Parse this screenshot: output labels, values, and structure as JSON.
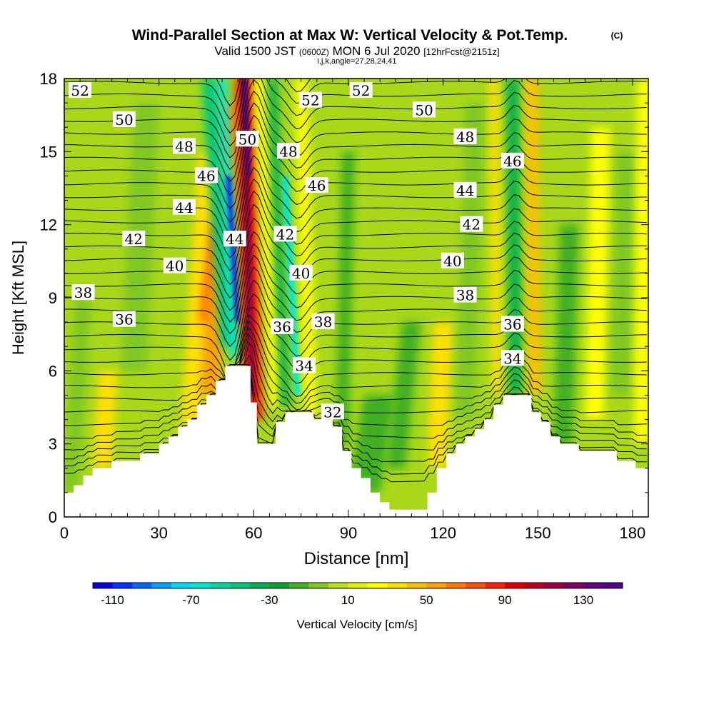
{
  "header": {
    "title": "Wind-Parallel Section at Max W: Vertical Velocity & Pot.Temp.",
    "title_mark": "(C)",
    "valid_prefix": "Valid 1500 JST",
    "valid_utc": "(0600Z)",
    "valid_date": "MON 6 Jul 2020",
    "fcst": "[12hrFcst@2151z]",
    "indices": "i,j,k,angle=27,28,24,41"
  },
  "chart_data": {
    "type": "heatmap",
    "title": "Wind-Parallel Section at Max W: Vertical Velocity & Pot.Temp.",
    "xlabel": "Distance [nm]",
    "ylabel": "Height [Kft MSL]",
    "xlim": [
      0,
      185
    ],
    "ylim": [
      0,
      18
    ],
    "x_ticks": [
      "0",
      "30",
      "60",
      "90",
      "120",
      "150",
      "180"
    ],
    "y_ticks": [
      "0",
      "3",
      "6",
      "9",
      "12",
      "15",
      "18"
    ],
    "colorbar": {
      "label": "Vertical Velocity [cm/s]",
      "tick_labels": [
        "-110",
        "-70",
        "-30",
        "10",
        "50",
        "90",
        "130"
      ],
      "range": [
        -120,
        150
      ],
      "step": 10,
      "colors": [
        "#0000e0",
        "#0030ff",
        "#0068ff",
        "#00a0ff",
        "#00d8ff",
        "#00e8d0",
        "#00d8a0",
        "#00c878",
        "#00b050",
        "#10a030",
        "#40b020",
        "#80c820",
        "#b8e018",
        "#e0f000",
        "#ffff00",
        "#ffe000",
        "#ffc000",
        "#ffa000",
        "#ff7800",
        "#ff5000",
        "#ff2000",
        "#e00000",
        "#c00020",
        "#a00040",
        "#800060",
        "#600080",
        "#500090"
      ]
    },
    "theta_contour_labels": [
      {
        "text": "52",
        "x": 5,
        "y": 17.5
      },
      {
        "text": "50",
        "x": 19,
        "y": 16.3
      },
      {
        "text": "48",
        "x": 38,
        "y": 15.2
      },
      {
        "text": "46",
        "x": 45,
        "y": 14.0
      },
      {
        "text": "44",
        "x": 38,
        "y": 12.7
      },
      {
        "text": "42",
        "x": 22,
        "y": 11.4
      },
      {
        "text": "40",
        "x": 35,
        "y": 10.3
      },
      {
        "text": "38",
        "x": 6,
        "y": 9.2
      },
      {
        "text": "36",
        "x": 19,
        "y": 8.1
      },
      {
        "text": "50",
        "x": 58,
        "y": 15.5
      },
      {
        "text": "44",
        "x": 54,
        "y": 11.4
      },
      {
        "text": "52",
        "x": 78,
        "y": 17.1
      },
      {
        "text": "48",
        "x": 71,
        "y": 15.0
      },
      {
        "text": "46",
        "x": 80,
        "y": 13.6
      },
      {
        "text": "42",
        "x": 70,
        "y": 11.6
      },
      {
        "text": "40",
        "x": 75,
        "y": 10.0
      },
      {
        "text": "38",
        "x": 82,
        "y": 8.0
      },
      {
        "text": "36",
        "x": 69,
        "y": 7.8
      },
      {
        "text": "34",
        "x": 76,
        "y": 6.2
      },
      {
        "text": "32",
        "x": 85,
        "y": 4.3
      },
      {
        "text": "52",
        "x": 94,
        "y": 17.5
      },
      {
        "text": "50",
        "x": 114,
        "y": 16.7
      },
      {
        "text": "48",
        "x": 127,
        "y": 15.6
      },
      {
        "text": "46",
        "x": 142,
        "y": 14.6
      },
      {
        "text": "44",
        "x": 127,
        "y": 13.4
      },
      {
        "text": "42",
        "x": 129,
        "y": 12.0
      },
      {
        "text": "40",
        "x": 123,
        "y": 10.5
      },
      {
        "text": "38",
        "x": 127,
        "y": 9.1
      },
      {
        "text": "36",
        "x": 142,
        "y": 7.9
      },
      {
        "text": "34",
        "x": 142,
        "y": 6.5
      }
    ],
    "terrain_profile": {
      "x": [
        0,
        3,
        6,
        9,
        12,
        15,
        18,
        21,
        24,
        27,
        30,
        33,
        36,
        39,
        42,
        45,
        48,
        51,
        54,
        57,
        59,
        61,
        64,
        67,
        70,
        73,
        76,
        79,
        82,
        85,
        88,
        91,
        94,
        97,
        100,
        103,
        106,
        109,
        112,
        115,
        118,
        121,
        124,
        127,
        130,
        133,
        136,
        139,
        142,
        145,
        148,
        151,
        154,
        157,
        160,
        163,
        166,
        169,
        172,
        175,
        178,
        181,
        185
      ],
      "height": [
        1.0,
        1.3,
        1.7,
        2.0,
        2.0,
        2.3,
        2.3,
        2.3,
        2.6,
        2.6,
        3.0,
        3.3,
        3.7,
        4.0,
        4.6,
        5.0,
        5.6,
        6.2,
        6.2,
        6.2,
        4.7,
        3.0,
        3.0,
        3.9,
        4.3,
        4.3,
        4.3,
        4.0,
        4.0,
        3.7,
        2.7,
        2.0,
        1.6,
        1.0,
        0.6,
        0.3,
        0.3,
        0.3,
        0.3,
        1.0,
        2.0,
        2.6,
        3.0,
        3.3,
        3.6,
        4.0,
        4.6,
        5.0,
        5.0,
        5.0,
        4.3,
        3.9,
        3.3,
        3.0,
        3.0,
        2.7,
        2.7,
        2.7,
        2.7,
        2.3,
        2.3,
        2.0,
        2.0
      ]
    }
  }
}
